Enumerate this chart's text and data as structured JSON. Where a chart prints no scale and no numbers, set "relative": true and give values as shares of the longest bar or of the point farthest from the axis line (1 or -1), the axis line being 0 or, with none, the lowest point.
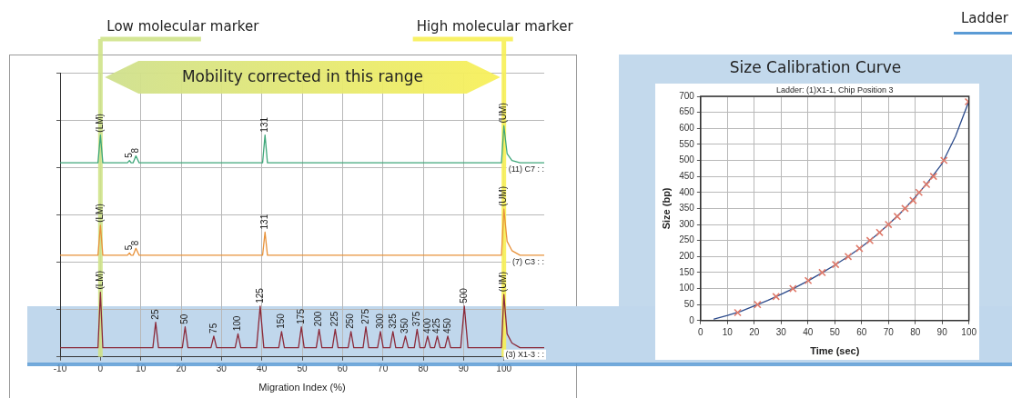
{
  "chart_data": [
    {
      "type": "line",
      "xlabel": "Migration Index (%)",
      "xlim": [
        -10,
        110
      ],
      "xticks": [
        -10,
        0,
        10,
        20,
        30,
        40,
        50,
        60,
        70,
        80,
        90,
        100
      ],
      "relative": true,
      "grid": true,
      "tick_labels": "x",
      "series": [
        {
          "name": "(11) C7 : :",
          "color": "#3fa77a",
          "x": [
            -10,
            -0.6,
            0,
            0.6,
            6.7,
            7.2,
            7.6,
            8.1,
            8.8,
            9.6,
            40.2,
            40.8,
            41.4,
            99.4,
            100,
            100.8,
            102,
            104,
            110
          ],
          "values": [
            0.84,
            0.84,
            0.96,
            0.84,
            0.84,
            0.85,
            0.84,
            0.84,
            0.87,
            0.84,
            0.84,
            0.96,
            0.84,
            0.84,
            1,
            0.88,
            0.85,
            0.84,
            0.84
          ]
        },
        {
          "name": "(7) C3 : :",
          "color": "#e8923a",
          "x": [
            -10,
            -0.6,
            0,
            0.6,
            6.7,
            7.2,
            7.6,
            8.1,
            8.8,
            9.6,
            40.2,
            40.8,
            41.4,
            99.4,
            100,
            100.8,
            102,
            104,
            110
          ],
          "values": [
            0.44,
            0.44,
            0.57,
            0.44,
            0.44,
            0.45,
            0.44,
            0.44,
            0.47,
            0.44,
            0.44,
            0.54,
            0.44,
            0.44,
            0.64,
            0.5,
            0.46,
            0.44,
            0.44
          ]
        },
        {
          "name": "(3) X1-3 : :",
          "color": "#8b2a3a",
          "x": [
            -10,
            -0.6,
            0,
            0.6,
            13,
            13.7,
            14.4,
            20.3,
            21,
            21.7,
            27.4,
            28.1,
            28.8,
            33.4,
            34.1,
            34.8,
            38.7,
            39.6,
            40.5,
            44.2,
            44.9,
            45.6,
            49.1,
            49.8,
            50.5,
            53.5,
            54.2,
            54.9,
            57.5,
            58.2,
            58.9,
            61.4,
            62.1,
            62.8,
            65.1,
            65.8,
            66.5,
            68.7,
            69.4,
            70.1,
            71.8,
            72.5,
            73.2,
            74.9,
            75.6,
            76.3,
            77.8,
            78.5,
            79.2,
            80.4,
            81.1,
            81.8,
            82.8,
            83.5,
            84.2,
            85.4,
            86.1,
            86.8,
            89.3,
            90.2,
            91.1,
            99.4,
            100,
            100.8,
            102,
            104,
            110
          ],
          "values": [
            0.04,
            0.04,
            0.28,
            0.04,
            0.04,
            0.15,
            0.04,
            0.04,
            0.13,
            0.04,
            0.04,
            0.09,
            0.04,
            0.04,
            0.1,
            0.04,
            0.04,
            0.22,
            0.04,
            0.04,
            0.11,
            0.04,
            0.04,
            0.13,
            0.04,
            0.04,
            0.12,
            0.04,
            0.04,
            0.12,
            0.04,
            0.04,
            0.11,
            0.04,
            0.04,
            0.13,
            0.04,
            0.04,
            0.11,
            0.04,
            0.04,
            0.11,
            0.04,
            0.04,
            0.09,
            0.04,
            0.04,
            0.12,
            0.04,
            0.04,
            0.09,
            0.04,
            0.04,
            0.09,
            0.04,
            0.04,
            0.09,
            0.04,
            0.04,
            0.22,
            0.04,
            0.04,
            0.27,
            0.1,
            0.06,
            0.04,
            0.04
          ]
        }
      ],
      "ref_lines": [
        {
          "axis": "x",
          "value": 0,
          "label": "Low molecular marker",
          "color": "#cfe38a"
        },
        {
          "axis": "x",
          "value": 100,
          "label": "High molecular marker",
          "color": "#f7ef55"
        }
      ],
      "annotations": [
        "Mobility corrected in this range",
        "Ladder",
        {
          "text": "(LM)",
          "x": 0,
          "y": 0.96
        },
        {
          "text": "5",
          "x": 7.2,
          "y": 0.85
        },
        {
          "text": "8",
          "x": 8.8,
          "y": 0.87
        },
        {
          "text": "131",
          "x": 40.8,
          "y": 0.96
        },
        {
          "text": "(UM)",
          "x": 100,
          "y": 1
        },
        {
          "text": "(LM)",
          "x": 0,
          "y": 0.57
        },
        {
          "text": "5",
          "x": 7.2,
          "y": 0.45
        },
        {
          "text": "8",
          "x": 8.8,
          "y": 0.47
        },
        {
          "text": "131",
          "x": 40.8,
          "y": 0.54
        },
        {
          "text": "(UM)",
          "x": 100,
          "y": 0.64
        },
        {
          "text": "(LM)",
          "x": 0,
          "y": 0.28
        },
        {
          "text": "25",
          "x": 13.7,
          "y": 0.15
        },
        {
          "text": "50",
          "x": 21,
          "y": 0.13
        },
        {
          "text": "75",
          "x": 28.1,
          "y": 0.09
        },
        {
          "text": "100",
          "x": 34.1,
          "y": 0.1
        },
        {
          "text": "125",
          "x": 39.6,
          "y": 0.22
        },
        {
          "text": "150",
          "x": 44.9,
          "y": 0.11
        },
        {
          "text": "175",
          "x": 49.8,
          "y": 0.13
        },
        {
          "text": "200",
          "x": 54.2,
          "y": 0.12
        },
        {
          "text": "225",
          "x": 58.2,
          "y": 0.12
        },
        {
          "text": "250",
          "x": 62.1,
          "y": 0.11
        },
        {
          "text": "275",
          "x": 65.8,
          "y": 0.13
        },
        {
          "text": "300",
          "x": 69.4,
          "y": 0.11
        },
        {
          "text": "325",
          "x": 72.5,
          "y": 0.11
        },
        {
          "text": "350",
          "x": 75.6,
          "y": 0.09
        },
        {
          "text": "375",
          "x": 78.5,
          "y": 0.12
        },
        {
          "text": "400",
          "x": 81.1,
          "y": 0.09
        },
        {
          "text": "425",
          "x": 83.5,
          "y": 0.09
        },
        {
          "text": "450",
          "x": 86.1,
          "y": 0.09
        },
        {
          "text": "500",
          "x": 90.2,
          "y": 0.22
        },
        {
          "text": "(UM)",
          "x": 100,
          "y": 0.27
        }
      ]
    },
    {
      "type": "line",
      "title": "Size Calibration Curve",
      "subtitle": "Ladder: (1)X1-1, Chip Position 3",
      "xlabel": "Time (sec)",
      "ylabel": "Size (bp)",
      "xlim": [
        0,
        100
      ],
      "xticks": [
        0,
        10,
        20,
        30,
        40,
        50,
        60,
        70,
        80,
        90,
        100
      ],
      "ylim": [
        0,
        700
      ],
      "yticks": [
        0,
        50,
        100,
        150,
        200,
        250,
        300,
        350,
        400,
        450,
        500,
        550,
        600,
        650,
        700
      ],
      "grid": true,
      "series": [
        {
          "color": "#2c4b8c",
          "x": [
            5,
            10,
            15,
            20,
            25,
            30,
            35,
            40,
            45,
            50,
            55,
            60,
            65,
            70,
            75,
            80,
            85,
            90,
            95,
            100
          ],
          "values": [
            5,
            16,
            29,
            46,
            63,
            82,
            102,
            124,
            148,
            173,
            200,
            230,
            263,
            300,
            340,
            385,
            435,
            490,
            575,
            685
          ]
        },
        {
          "type": "scatter",
          "color": "#e07a6a",
          "marker": "cross",
          "x": [
            13.8,
            21.2,
            28.1,
            34.4,
            40.1,
            45.3,
            50.3,
            55,
            59.2,
            63.1,
            66.7,
            70,
            73.3,
            76.2,
            79.2,
            81.4,
            84.2,
            86.8,
            90.7,
            99.8
          ],
          "values": [
            25,
            50,
            75,
            100,
            125,
            150,
            175,
            200,
            225,
            250,
            275,
            300,
            325,
            350,
            375,
            400,
            425,
            450,
            500,
            683
          ]
        }
      ]
    }
  ]
}
